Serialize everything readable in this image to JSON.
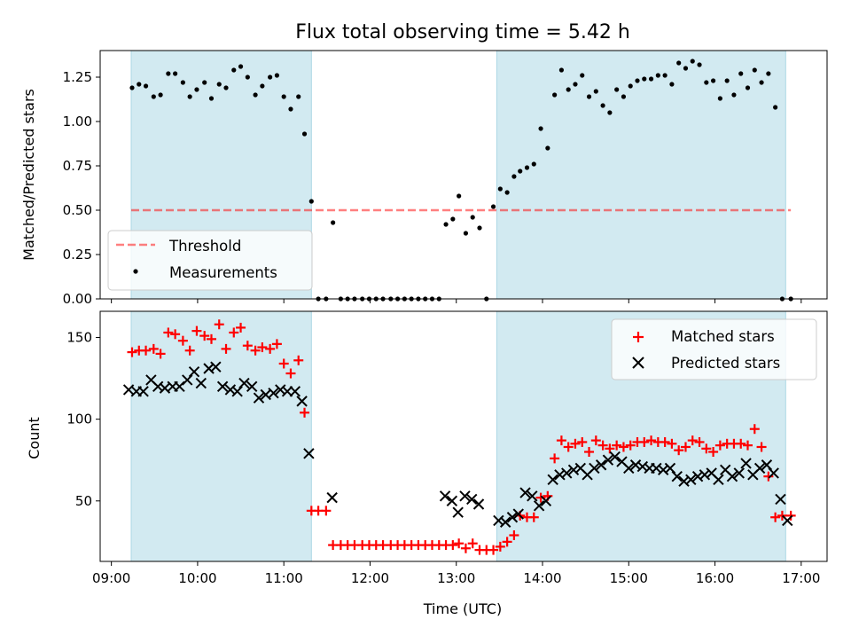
{
  "chart_data": {
    "title": "Flux total observing time = 5.42 h",
    "xlabel": "Time (UTC)",
    "x_ticks": [
      "09:00",
      "10:00",
      "11:00",
      "12:00",
      "13:00",
      "14:00",
      "15:00",
      "16:00",
      "17:00"
    ],
    "x_range_hours": [
      8.87,
      17.3
    ],
    "shaded_intervals_hours": [
      [
        9.23,
        11.32
      ],
      [
        13.47,
        16.82
      ]
    ],
    "colors": {
      "shade": "#add8e6",
      "threshold": "#ff0000",
      "matched": "#ff0000",
      "predicted": "#000000",
      "measurement": "#000000"
    },
    "panels": [
      {
        "type": "scatter",
        "ylabel": "Matched/Predicted stars",
        "ylim": [
          0,
          1.4
        ],
        "y_ticks": [
          "0.00",
          "0.25",
          "0.50",
          "0.75",
          "1.00",
          "1.25"
        ],
        "threshold": 0.5,
        "legend": {
          "position": "lower-left",
          "entries": [
            "Threshold",
            "Measurements"
          ]
        },
        "series": [
          {
            "name": "Measurements",
            "x_hours": [
              9.24,
              9.32,
              9.4,
              9.49,
              9.57,
              9.66,
              9.74,
              9.83,
              9.91,
              9.99,
              10.08,
              10.16,
              10.25,
              10.33,
              10.42,
              10.5,
              10.58,
              10.67,
              10.75,
              10.84,
              10.92,
              11.0,
              11.08,
              11.17,
              11.24,
              11.32,
              11.4,
              11.49,
              11.57,
              11.66,
              11.74,
              11.82,
              11.91,
              11.99,
              12.07,
              12.15,
              12.24,
              12.32,
              12.4,
              12.48,
              12.56,
              12.64,
              12.72,
              12.8,
              12.88,
              12.96,
              13.03,
              13.11,
              13.19,
              13.27,
              13.35,
              13.43,
              13.51,
              13.59,
              13.67,
              13.74,
              13.82,
              13.9,
              13.98,
              14.06,
              14.14,
              14.22,
              14.3,
              14.38,
              14.46,
              14.54,
              14.62,
              14.7,
              14.78,
              14.86,
              14.94,
              15.02,
              15.1,
              15.18,
              15.26,
              15.34,
              15.42,
              15.5,
              15.58,
              15.66,
              15.74,
              15.82,
              15.9,
              15.98,
              16.06,
              16.14,
              16.22,
              16.3,
              16.38,
              16.46,
              16.54,
              16.62,
              16.7,
              16.78,
              16.88
            ],
            "y": [
              1.19,
              1.21,
              1.2,
              1.14,
              1.15,
              1.27,
              1.27,
              1.22,
              1.14,
              1.18,
              1.22,
              1.13,
              1.21,
              1.19,
              1.29,
              1.31,
              1.25,
              1.15,
              1.2,
              1.25,
              1.26,
              1.14,
              1.07,
              1.14,
              0.93,
              0.55,
              0.0,
              0.0,
              0.43,
              0.0,
              0.0,
              0.0,
              0.0,
              0.0,
              0.0,
              0.0,
              0.0,
              0.0,
              0.0,
              0.0,
              0.0,
              0.0,
              0.0,
              0.0,
              0.42,
              0.45,
              0.58,
              0.37,
              0.46,
              0.4,
              0.0,
              0.52,
              0.62,
              0.6,
              0.69,
              0.72,
              0.74,
              0.76,
              0.96,
              0.85,
              1.15,
              1.29,
              1.18,
              1.21,
              1.26,
              1.14,
              1.17,
              1.09,
              1.05,
              1.18,
              1.14,
              1.2,
              1.23,
              1.24,
              1.24,
              1.26,
              1.26,
              1.21,
              1.33,
              1.3,
              1.34,
              1.32,
              1.22,
              1.23,
              1.13,
              1.23,
              1.15,
              1.27,
              1.19,
              1.29,
              1.22,
              1.27,
              1.08,
              0.0,
              0.0
            ]
          }
        ]
      },
      {
        "type": "scatter",
        "ylabel": "Count",
        "ylim": [
          13,
          166
        ],
        "y_ticks": [
          "50",
          "100",
          "150"
        ],
        "legend": {
          "position": "top-right",
          "entries": [
            "Matched stars",
            "Predicted stars"
          ]
        },
        "series": [
          {
            "name": "Matched stars",
            "marker": "plus",
            "x_hours": [
              9.24,
              9.32,
              9.4,
              9.49,
              9.57,
              9.66,
              9.74,
              9.83,
              9.91,
              9.99,
              10.08,
              10.16,
              10.25,
              10.33,
              10.42,
              10.5,
              10.58,
              10.67,
              10.75,
              10.84,
              10.92,
              11.0,
              11.08,
              11.17,
              11.24,
              11.32,
              11.4,
              11.49,
              11.57,
              11.66,
              11.74,
              11.82,
              11.91,
              11.99,
              12.07,
              12.15,
              12.24,
              12.32,
              12.4,
              12.48,
              12.56,
              12.64,
              12.72,
              12.8,
              12.88,
              12.96,
              13.03,
              13.11,
              13.19,
              13.27,
              13.35,
              13.43,
              13.51,
              13.59,
              13.67,
              13.74,
              13.82,
              13.9,
              13.98,
              14.06,
              14.14,
              14.22,
              14.3,
              14.38,
              14.46,
              14.54,
              14.62,
              14.7,
              14.78,
              14.86,
              14.94,
              15.02,
              15.1,
              15.18,
              15.26,
              15.34,
              15.42,
              15.5,
              15.58,
              15.66,
              15.74,
              15.82,
              15.9,
              15.98,
              16.06,
              16.14,
              16.22,
              16.3,
              16.38,
              16.46,
              16.54,
              16.62,
              16.7,
              16.78,
              16.88
            ],
            "y": [
              141,
              142,
              142,
              143,
              140,
              153,
              152,
              148,
              142,
              154,
              151,
              149,
              158,
              143,
              153,
              156,
              145,
              142,
              144,
              143,
              146,
              134,
              128,
              136,
              104,
              44,
              44,
              44,
              23,
              23,
              23,
              23,
              23,
              23,
              23,
              23,
              23,
              23,
              23,
              23,
              23,
              23,
              23,
              23,
              23,
              23,
              24,
              21,
              24,
              20,
              20,
              20,
              22,
              25,
              29,
              41,
              40,
              40,
              52,
              53,
              76,
              87,
              83,
              85,
              86,
              80,
              87,
              84,
              82,
              84,
              83,
              84,
              86,
              86,
              87,
              86,
              86,
              85,
              81,
              83,
              87,
              86,
              82,
              80,
              84,
              85,
              85,
              85,
              84,
              94,
              83,
              65,
              40,
              41,
              41
            ]
          },
          {
            "name": "Predicted stars",
            "marker": "x",
            "x_hours": [
              9.2,
              9.29,
              9.37,
              9.46,
              9.54,
              9.62,
              9.71,
              9.79,
              9.88,
              9.96,
              10.04,
              10.13,
              10.21,
              10.29,
              10.38,
              10.46,
              10.54,
              10.63,
              10.71,
              10.79,
              10.88,
              10.96,
              11.04,
              11.13,
              11.21,
              11.29,
              11.56,
              12.87,
              12.95,
              13.02,
              13.1,
              13.18,
              13.26,
              13.49,
              13.57,
              13.65,
              13.72,
              13.8,
              13.88,
              13.96,
              14.04,
              14.12,
              14.2,
              14.28,
              14.36,
              14.44,
              14.52,
              14.6,
              14.68,
              14.76,
              14.84,
              14.92,
              15.0,
              15.08,
              15.16,
              15.24,
              15.32,
              15.4,
              15.48,
              15.56,
              15.64,
              15.72,
              15.8,
              15.88,
              15.96,
              16.04,
              16.12,
              16.2,
              16.28,
              16.36,
              16.44,
              16.52,
              16.6,
              16.68,
              16.76,
              16.84
            ],
            "y": [
              118,
              117,
              117,
              124,
              120,
              119,
              120,
              120,
              124,
              129,
              122,
              131,
              132,
              120,
              118,
              117,
              122,
              120,
              113,
              115,
              116,
              118,
              117,
              117,
              111,
              79,
              52,
              53,
              50,
              43,
              53,
              51,
              48,
              38,
              37,
              40,
              42,
              55,
              53,
              47,
              50,
              63,
              66,
              67,
              69,
              70,
              66,
              70,
              72,
              75,
              77,
              74,
              70,
              72,
              71,
              70,
              70,
              69,
              70,
              65,
              62,
              63,
              65,
              66,
              67,
              63,
              69,
              65,
              67,
              73,
              66,
              70,
              72,
              67,
              51,
              38
            ]
          }
        ]
      }
    ]
  }
}
